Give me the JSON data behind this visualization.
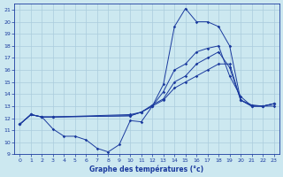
{
  "title": "Graphe des températures (°c)",
  "bg_color": "#cce8f0",
  "line_color": "#1a3a9e",
  "grid_color": "#aaccdd",
  "xlim": [
    -0.5,
    23.5
  ],
  "ylim": [
    9,
    21.5
  ],
  "xticks": [
    0,
    1,
    2,
    3,
    4,
    5,
    6,
    7,
    8,
    9,
    10,
    11,
    12,
    13,
    14,
    15,
    16,
    17,
    18,
    19,
    20,
    21,
    22,
    23
  ],
  "yticks": [
    9,
    10,
    11,
    12,
    13,
    14,
    15,
    16,
    17,
    18,
    19,
    20,
    21
  ],
  "curve1_x": [
    0,
    1,
    2,
    3,
    4,
    5,
    6,
    7,
    8,
    9,
    10,
    11,
    12,
    13,
    14,
    15,
    16,
    17,
    18,
    19,
    20,
    21,
    22,
    23
  ],
  "curve1_y": [
    11.5,
    12.3,
    12.1,
    11.1,
    10.5,
    10.5,
    10.2,
    9.5,
    9.2,
    9.8,
    11.8,
    11.7,
    13.0,
    14.8,
    19.6,
    21.1,
    20.0,
    20.0,
    19.6,
    18.0,
    13.5,
    13.1,
    13.0,
    13.2
  ],
  "curve2_x": [
    0,
    1,
    2,
    3,
    10,
    11,
    12,
    13,
    14,
    15,
    16,
    17,
    18,
    19,
    20,
    21,
    22,
    23
  ],
  "curve2_y": [
    11.5,
    12.3,
    12.1,
    12.1,
    12.2,
    12.5,
    13.0,
    14.2,
    16.0,
    16.5,
    17.5,
    17.8,
    18.0,
    15.5,
    13.8,
    13.0,
    13.0,
    13.2
  ],
  "curve3_x": [
    0,
    1,
    2,
    3,
    10,
    11,
    12,
    13,
    14,
    15,
    16,
    17,
    18,
    19,
    20,
    21,
    22,
    23
  ],
  "curve3_y": [
    11.5,
    12.3,
    12.1,
    12.1,
    12.2,
    12.5,
    13.1,
    13.6,
    15.0,
    15.5,
    16.5,
    17.0,
    17.5,
    16.2,
    13.5,
    13.0,
    13.0,
    13.0
  ],
  "curve4_x": [
    0,
    1,
    2,
    3,
    10,
    11,
    12,
    13,
    14,
    15,
    16,
    17,
    18,
    19,
    20,
    21,
    22,
    23
  ],
  "curve4_y": [
    11.5,
    12.3,
    12.1,
    12.1,
    12.3,
    12.5,
    13.0,
    13.5,
    14.5,
    15.0,
    15.5,
    16.0,
    16.5,
    16.5,
    13.5,
    13.0,
    13.0,
    13.2
  ]
}
